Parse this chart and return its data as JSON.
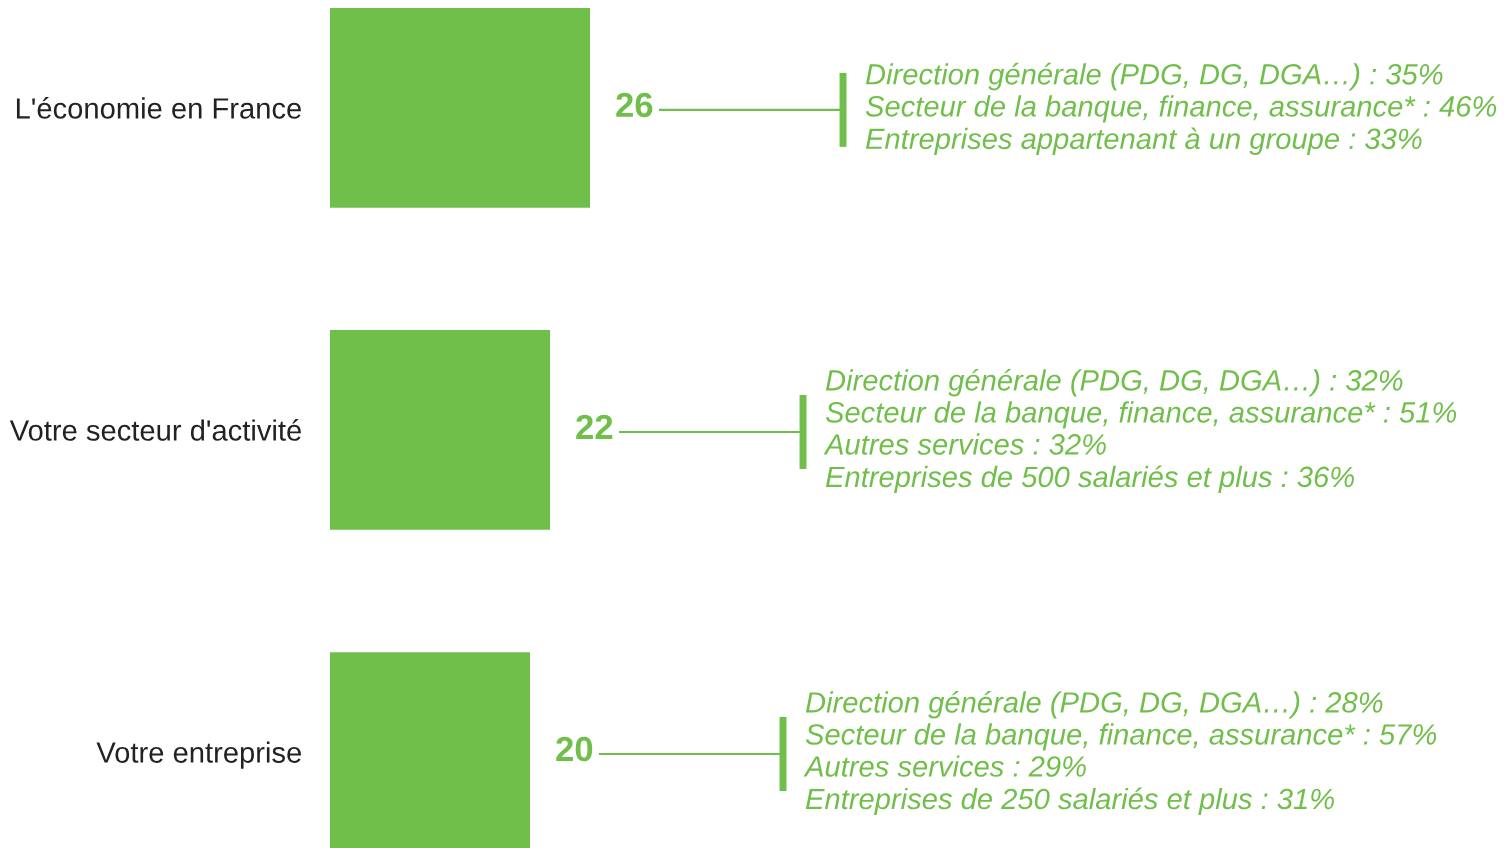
{
  "chart_data": {
    "type": "bar",
    "orientation": "horizontal",
    "categories": [
      "L'économie en France",
      "Votre secteur d'activité",
      "Votre entreprise"
    ],
    "series": [
      {
        "color": "#70bf4b",
        "values": [
          26,
          22,
          20
        ]
      }
    ],
    "data_labels": true,
    "annotations": [
      "Direction générale (PDG, DG, DGA…) : 35%\nSecteur de la banque, finance, assurance* : 46%\nEntreprises appartenant à un groupe : 33%",
      "Direction générale (PDG, DG, DGA…) : 32%\nSecteur de la banque, finance, assurance* : 51%\nAutres services : 32%\nEntreprises de 500 salariés et plus : 36%",
      "Direction générale (PDG, DG, DGA…) : 28%\nSecteur de la banque, finance, assurance* : 57%\nAutres services : 29%\nEntreprises de 250 salariés et plus : 31%"
    ],
    "tick_labels": "y",
    "grid": false
  }
}
